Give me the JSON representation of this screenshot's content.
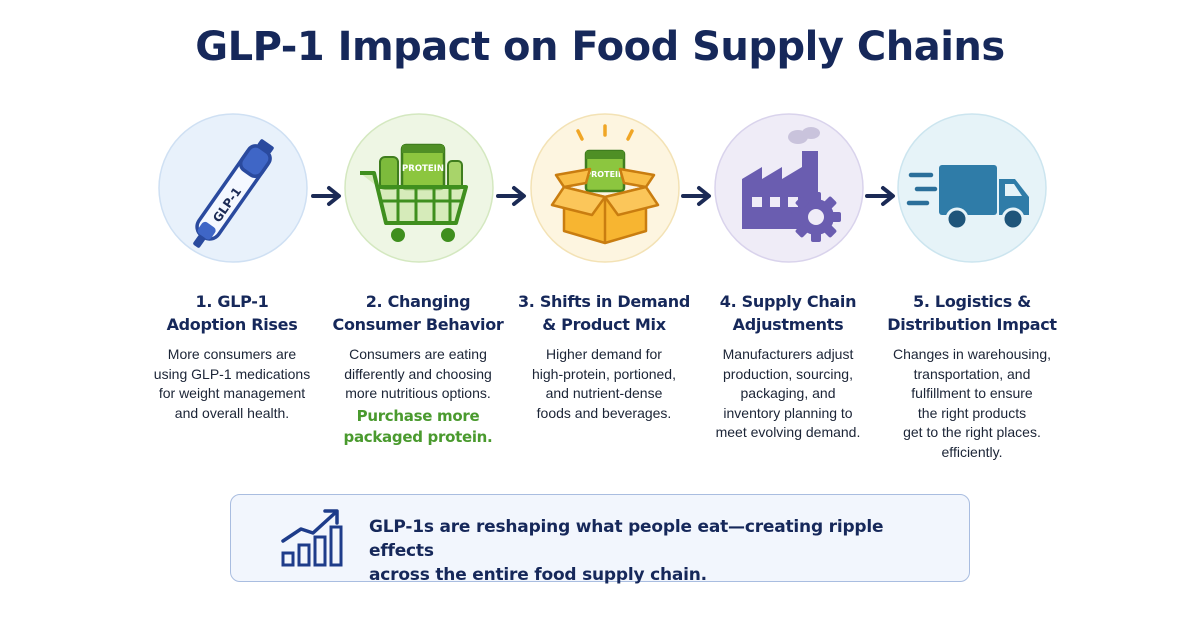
{
  "title": "GLP-1 Impact on Food Supply Chains",
  "steps": [
    {
      "title_lines": [
        "1. GLP-1",
        "Adoption Rises"
      ],
      "description_lines": [
        "More consumers are",
        "using GLP-1 medications",
        "for weight management",
        "and overall health."
      ],
      "icon": "glp1-pen-icon",
      "icon_label": "GLP-1"
    },
    {
      "title_lines": [
        "2. Changing",
        "Consumer Behavior"
      ],
      "description_lines": [
        "Consumers are eating",
        "differently and choosing",
        "more nutritious options."
      ],
      "highlight_lines": [
        "Purchase more",
        "packaged protein."
      ],
      "icon": "shopping-cart-icon",
      "icon_label": "PROTEIN"
    },
    {
      "title_lines": [
        "3. Shifts in Demand",
        "& Product Mix"
      ],
      "description_lines": [
        "Higher demand for",
        "high-protein, portioned,",
        "and nutrient-dense",
        "foods and beverages."
      ],
      "icon": "open-box-icon",
      "icon_label": "PROTEIN"
    },
    {
      "title_lines": [
        "4. Supply Chain",
        "Adjustments"
      ],
      "description_lines": [
        "Manufacturers adjust",
        "production, sourcing,",
        "packaging, and",
        "inventory planning to",
        "meet evolving demand."
      ],
      "icon": "factory-gear-icon"
    },
    {
      "title_lines": [
        "5. Logistics &",
        "Distribution Impact"
      ],
      "description_lines": [
        "Changes in warehousing,",
        "transportation, and",
        "fulfillment to ensure",
        "the right products",
        "get to the right places.",
        "efficiently."
      ],
      "icon": "delivery-truck-icon"
    }
  ],
  "summary": {
    "icon": "growth-chart-icon",
    "lines": [
      "GLP-1s are reshaping what people eat—creating ripple effects",
      "across the entire food supply chain."
    ]
  },
  "colors": {
    "title": "#16285a",
    "highlight": "#4a9a2e",
    "circle_blue": "#e8f1fb",
    "circle_green": "#eef6e4",
    "circle_yellow": "#fdf5e0",
    "circle_purple": "#efecf7",
    "circle_teal": "#e6f3f8",
    "arrow": "#1b2a55"
  }
}
